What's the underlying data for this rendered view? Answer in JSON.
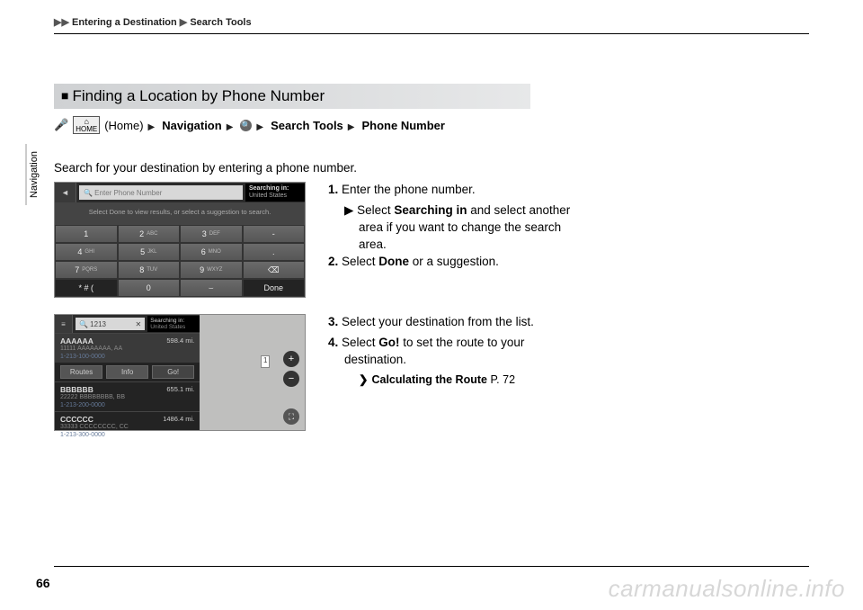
{
  "breadcrumb": {
    "arrows": "▶▶",
    "part1": "Entering a Destination",
    "sep": "▶",
    "part2": "Search Tools"
  },
  "sideTab": "Navigation",
  "sectionTitle": "Finding a Location by Phone Number",
  "navPath": {
    "homeLabel": "HOME",
    "homeParen": "(Home)",
    "nav": "Navigation",
    "searchTools": "Search Tools",
    "phoneNumber": "Phone Number"
  },
  "intro": "Search for your destination by entering a phone number.",
  "ss1": {
    "placeholder": "🔍 Enter Phone Number",
    "regionLabel": "Searching in:",
    "regionValue": "United States",
    "hint": "Select Done to view results, or select a suggestion to search.",
    "keys": [
      {
        "main": "1",
        "sub": ""
      },
      {
        "main": "2",
        "sub": "ABC"
      },
      {
        "main": "3",
        "sub": "DEF"
      },
      {
        "main": "-",
        "sub": ""
      },
      {
        "main": "4",
        "sub": "GHI"
      },
      {
        "main": "5",
        "sub": "JKL"
      },
      {
        "main": "6",
        "sub": "MNO"
      },
      {
        "main": ".",
        "sub": ""
      },
      {
        "main": "7",
        "sub": "PQRS"
      },
      {
        "main": "8",
        "sub": "TUV"
      },
      {
        "main": "9",
        "sub": "WXYZ"
      },
      {
        "main": "⌫",
        "sub": ""
      },
      {
        "main": "* # (",
        "sub": "",
        "dark": true
      },
      {
        "main": "0",
        "sub": "",
        "dark": false
      },
      {
        "main": "⌣",
        "sub": "",
        "dark": false
      },
      {
        "main": "Done",
        "sub": "",
        "dark": true
      }
    ]
  },
  "ss2": {
    "query": "🔍 1213",
    "close": "✕",
    "regionLabel": "Searching in:",
    "regionValue": "United States",
    "items": [
      {
        "name": "AAAAAA",
        "addr": "11111 AAAAAAAA, AA",
        "phone": "1-213-100-0000",
        "dist": "598.4 mi.",
        "selected": true
      },
      {
        "name": "BBBBBB",
        "addr": "22222 BBBBBBBB, BB",
        "phone": "1-213-200-0000",
        "dist": "655.1 mi."
      },
      {
        "name": "CCCCCC",
        "addr": "33333 CCCCCCCC, CC",
        "phone": "1-213-300-0000",
        "dist": "1486.4 mi."
      }
    ],
    "btns": {
      "routes": "Routes",
      "info": "Info",
      "go": "Go!"
    },
    "pin": "1"
  },
  "instr1": [
    {
      "n": "1.",
      "text": "Enter the phone number."
    },
    {
      "sub": true,
      "prefix": "▶",
      "text": "Select ",
      "bold": "Searching in",
      "after": " and select another area if you want to change the search area."
    },
    {
      "n": "2.",
      "text": "Select ",
      "bold": "Done",
      "after": " or a suggestion."
    }
  ],
  "instr2": [
    {
      "n": "3.",
      "text": "Select your destination from the list."
    },
    {
      "n": "4.",
      "text": "Select ",
      "bold": "Go!",
      "after": " to set the route to your destination."
    },
    {
      "ref": true,
      "bold": "Calculating the Route",
      "after": " P. 72"
    }
  ],
  "pageNum": "66",
  "watermark": "carmanualsonline.info"
}
